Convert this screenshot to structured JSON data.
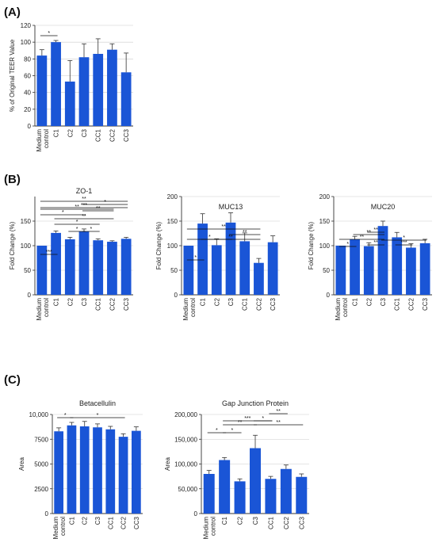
{
  "panels": [
    {
      "label": "(A)",
      "x": 5,
      "y": 20
    },
    {
      "label": "(B)",
      "x": 5,
      "y": 231
    },
    {
      "label": "(C)",
      "x": 5,
      "y": 484
    }
  ],
  "colors": {
    "bar": "#1a55d6",
    "axis": "#333333",
    "grid": "#cccccc"
  },
  "chart_data": [
    {
      "type": "bar",
      "panel": "A",
      "title": "",
      "ylabel": "% of Original TEER Value",
      "xlabel": "",
      "categories": [
        "Medium control",
        "C1",
        "C2",
        "C3",
        "CC1",
        "CC2",
        "CC3"
      ],
      "values": [
        84,
        100,
        53,
        82,
        86,
        91,
        64
      ],
      "errors": [
        7,
        2,
        25,
        16,
        18,
        7,
        23
      ],
      "ylim": [
        0,
        120
      ],
      "yticks": [
        0,
        20,
        40,
        60,
        80,
        100,
        120
      ],
      "ytick_labels": [
        "0",
        "20",
        "40",
        "60",
        "80",
        "100",
        "120"
      ],
      "grid": true,
      "significance": [
        {
          "from": 0,
          "to": 1,
          "label": "*"
        }
      ]
    },
    {
      "type": "bar",
      "panel": "B",
      "title": "ZO-1",
      "ylabel": "Fold Change (%)",
      "xlabel": "",
      "categories": [
        "Medium control",
        "C1",
        "C2",
        "C3",
        "CC1",
        "CC2",
        "CC3"
      ],
      "values": [
        100,
        126,
        113,
        129,
        111,
        108,
        114
      ],
      "errors": [
        0,
        4,
        4,
        5,
        3,
        2,
        3
      ],
      "ylim": [
        0,
        200
      ],
      "yticks": [
        0,
        50,
        100,
        150
      ],
      "ytick_labels": [
        "0",
        "50",
        "100",
        "150"
      ],
      "grid": true,
      "significance": [
        {
          "from": 0,
          "to": 1,
          "label": "***"
        },
        {
          "from": 2,
          "to": 3,
          "label": "*"
        },
        {
          "from": 3,
          "to": 4,
          "label": "*"
        },
        {
          "from": 1,
          "to": 4,
          "label": "*"
        },
        {
          "from": 1,
          "to": 5,
          "label": "**"
        },
        {
          "from": 0,
          "to": 3,
          "label": "*"
        },
        {
          "from": 3,
          "to": 5,
          "label": "**"
        },
        {
          "from": 0,
          "to": 5,
          "label": "**"
        },
        {
          "from": 3,
          "to": 6,
          "label": "*"
        },
        {
          "from": 0,
          "to": 6,
          "label": "***"
        },
        {
          "from": 0,
          "to": 6,
          "label": "**"
        }
      ]
    },
    {
      "type": "bar",
      "panel": "B",
      "title": "MUC13",
      "ylabel": "Fold Change (%)",
      "xlabel": "",
      "categories": [
        "Medium control",
        "C1",
        "C2",
        "C3",
        "CC1",
        "CC2",
        "CC3"
      ],
      "values": [
        100,
        145,
        101,
        147,
        109,
        65,
        107
      ],
      "errors": [
        0,
        20,
        13,
        20,
        17,
        9,
        13
      ],
      "ylim": [
        0,
        200
      ],
      "yticks": [
        0,
        50,
        100,
        150,
        200
      ],
      "ytick_labels": [
        "0",
        "50",
        "100",
        "150",
        "200"
      ],
      "grid": true,
      "significance": [
        {
          "from": 0,
          "to": 1,
          "label": "*"
        },
        {
          "from": 1,
          "to": 5,
          "label": "**"
        },
        {
          "from": 0,
          "to": 3,
          "label": "*"
        },
        {
          "from": 3,
          "to": 5,
          "label": "**"
        },
        {
          "from": 0,
          "to": 5,
          "label": "**"
        }
      ]
    },
    {
      "type": "bar",
      "panel": "B",
      "title": "MUC20",
      "ylabel": "Fold Change (%)",
      "xlabel": "",
      "categories": [
        "Medium control",
        "C1",
        "C2",
        "C3",
        "CC1",
        "CC2",
        "CC3"
      ],
      "values": [
        100,
        113,
        99,
        140,
        117,
        96,
        105
      ],
      "errors": [
        0,
        6,
        7,
        10,
        10,
        8,
        8
      ],
      "ylim": [
        0,
        200
      ],
      "yticks": [
        0,
        50,
        100,
        150,
        200
      ],
      "ytick_labels": [
        "0",
        "50",
        "100",
        "150",
        "200"
      ],
      "grid": true,
      "significance": [
        {
          "from": 0,
          "to": 1,
          "label": "*"
        },
        {
          "from": 2,
          "to": 3,
          "label": "**"
        },
        {
          "from": 4,
          "to": 5,
          "label": "***"
        },
        {
          "from": 0,
          "to": 3,
          "label": "**"
        },
        {
          "from": 3,
          "to": 6,
          "label": "*"
        },
        {
          "from": 1,
          "to": 3,
          "label": "**"
        },
        {
          "from": 2,
          "to": 3,
          "label": "**"
        }
      ]
    },
    {
      "type": "bar",
      "panel": "C",
      "title": "Betacellulin",
      "ylabel": "Area",
      "xlabel": "",
      "categories": [
        "Medium control",
        "C1",
        "C2",
        "C3",
        "CC1",
        "CC2",
        "CC3"
      ],
      "values": [
        8300,
        8900,
        8800,
        8700,
        8500,
        7750,
        8350
      ],
      "errors": [
        350,
        300,
        500,
        350,
        300,
        300,
        400
      ],
      "ylim": [
        0,
        10000
      ],
      "yticks": [
        0,
        2500,
        5000,
        7500,
        10000
      ],
      "ytick_labels": [
        "0",
        "2500",
        "5000",
        "7500",
        "10,000"
      ],
      "grid": true,
      "significance": [
        {
          "from": 0,
          "to": 1,
          "label": "*"
        },
        {
          "from": 1,
          "to": 5,
          "label": "*"
        }
      ]
    },
    {
      "type": "bar",
      "panel": "C",
      "title": "Gap Junction Protein",
      "ylabel": "Area",
      "xlabel": "",
      "categories": [
        "Medium control",
        "C1",
        "C2",
        "C3",
        "CC1",
        "CC2",
        "CC3"
      ],
      "values": [
        80000,
        108000,
        65000,
        132000,
        70000,
        90000,
        74000
      ],
      "errors": [
        7000,
        5000,
        5000,
        26000,
        5000,
        8000,
        6000
      ],
      "ylim": [
        0,
        200000
      ],
      "yticks": [
        0,
        50000,
        100000,
        150000,
        200000
      ],
      "ytick_labels": [
        "0",
        "50,000",
        "100,000",
        "150,000",
        "200,000"
      ],
      "grid": true,
      "significance": [
        {
          "from": 0,
          "to": 1,
          "label": "*"
        },
        {
          "from": 1,
          "to": 2,
          "label": "*"
        },
        {
          "from": 1,
          "to": 3,
          "label": "**"
        },
        {
          "from": 3,
          "to": 6,
          "label": "**"
        },
        {
          "from": 1,
          "to": 4,
          "label": "***"
        },
        {
          "from": 3,
          "to": 4,
          "label": "*"
        },
        {
          "from": 4,
          "to": 5,
          "label": "**"
        }
      ]
    }
  ]
}
